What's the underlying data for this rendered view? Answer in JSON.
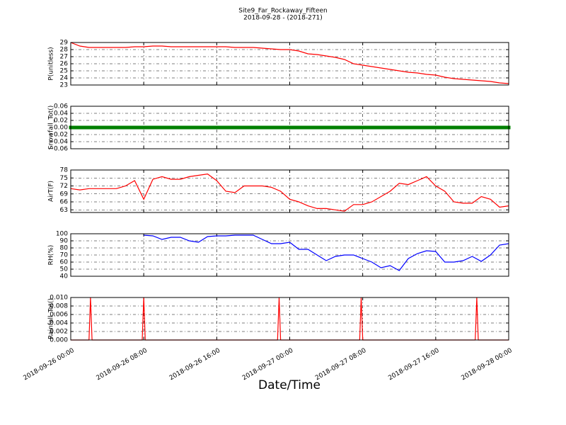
{
  "chart_data": [
    {
      "type": "line",
      "title": "Site9_Far_Rockaway_Fifteen",
      "subtitle": "2018-09-28 - (2018-271)",
      "y_label": "P(unitless)",
      "color": "#ff0000",
      "grid": true,
      "x": [
        "2018-09-26 00:00",
        "2018-09-26 01:00",
        "2018-09-26 02:00",
        "2018-09-26 03:00",
        "2018-09-26 04:00",
        "2018-09-26 05:00",
        "2018-09-26 06:00",
        "2018-09-26 07:00",
        "2018-09-26 08:00",
        "2018-09-26 09:00",
        "2018-09-26 10:00",
        "2018-09-26 11:00",
        "2018-09-26 12:00",
        "2018-09-26 13:00",
        "2018-09-26 14:00",
        "2018-09-26 15:00",
        "2018-09-26 16:00",
        "2018-09-26 17:00",
        "2018-09-26 18:00",
        "2018-09-26 19:00",
        "2018-09-26 20:00",
        "2018-09-26 21:00",
        "2018-09-26 22:00",
        "2018-09-26 23:00",
        "2018-09-27 00:00",
        "2018-09-27 01:00",
        "2018-09-27 02:00",
        "2018-09-27 03:00",
        "2018-09-27 04:00",
        "2018-09-27 05:00",
        "2018-09-27 06:00",
        "2018-09-27 07:00",
        "2018-09-27 08:00",
        "2018-09-27 09:00",
        "2018-09-27 10:00",
        "2018-09-27 11:00",
        "2018-09-27 12:00",
        "2018-09-27 13:00",
        "2018-09-27 14:00",
        "2018-09-27 15:00",
        "2018-09-27 16:00",
        "2018-09-27 17:00",
        "2018-09-27 18:00",
        "2018-09-27 19:00",
        "2018-09-27 20:00",
        "2018-09-27 21:00",
        "2018-09-27 22:00",
        "2018-09-27 23:00",
        "2018-09-28 00:00"
      ],
      "values": [
        29.0,
        28.5,
        28.3,
        28.3,
        28.3,
        28.3,
        28.3,
        28.4,
        28.4,
        28.5,
        28.5,
        28.4,
        28.4,
        28.4,
        28.4,
        28.4,
        28.4,
        28.4,
        28.3,
        28.3,
        28.3,
        28.2,
        28.1,
        28.0,
        28.0,
        27.8,
        27.4,
        27.3,
        27.1,
        26.9,
        26.6,
        26.0,
        25.8,
        25.6,
        25.4,
        25.2,
        25.0,
        24.8,
        24.7,
        24.5,
        24.4,
        24.1,
        23.9,
        23.8,
        23.7,
        23.6,
        23.5,
        23.3,
        23.2
      ],
      "ylim": [
        23,
        29
      ],
      "yticks": [
        23,
        24,
        25,
        26,
        27,
        28,
        29
      ]
    },
    {
      "type": "scatter",
      "y_label": "Snowfall_Tot()",
      "color": "#008000",
      "grid": true,
      "x": [
        "2018-09-26 00:00",
        "2018-09-26 01:00",
        "2018-09-26 02:00",
        "2018-09-26 03:00",
        "2018-09-26 04:00",
        "2018-09-26 05:00",
        "2018-09-26 06:00",
        "2018-09-26 07:00",
        "2018-09-26 08:00",
        "2018-09-26 09:00",
        "2018-09-26 10:00",
        "2018-09-26 11:00",
        "2018-09-26 12:00",
        "2018-09-26 13:00",
        "2018-09-26 14:00",
        "2018-09-26 15:00",
        "2018-09-26 16:00",
        "2018-09-26 17:00",
        "2018-09-26 18:00",
        "2018-09-26 19:00",
        "2018-09-26 20:00",
        "2018-09-26 21:00",
        "2018-09-26 22:00",
        "2018-09-26 23:00",
        "2018-09-27 00:00",
        "2018-09-27 01:00",
        "2018-09-27 02:00",
        "2018-09-27 03:00",
        "2018-09-27 04:00",
        "2018-09-27 05:00",
        "2018-09-27 06:00",
        "2018-09-27 07:00",
        "2018-09-27 08:00",
        "2018-09-27 09:00",
        "2018-09-27 10:00",
        "2018-09-27 11:00",
        "2018-09-27 12:00",
        "2018-09-27 13:00",
        "2018-09-27 14:00",
        "2018-09-27 15:00",
        "2018-09-27 16:00",
        "2018-09-27 17:00",
        "2018-09-27 18:00",
        "2018-09-27 19:00",
        "2018-09-27 20:00",
        "2018-09-27 21:00",
        "2018-09-27 22:00",
        "2018-09-27 23:00",
        "2018-09-28 00:00"
      ],
      "values": [
        0,
        0,
        0,
        0,
        0,
        0,
        0,
        0,
        0,
        0,
        0,
        0,
        0,
        0,
        0,
        0,
        0,
        0,
        0,
        0,
        0,
        0,
        0,
        0,
        0,
        0,
        0,
        0,
        0,
        0,
        0,
        0,
        0,
        0,
        0,
        0,
        0,
        0,
        0,
        0,
        0,
        0,
        0,
        0,
        0,
        0,
        0,
        0,
        0
      ],
      "ylim": [
        -0.06,
        0.06
      ],
      "yticks": [
        {
          "value": -0.06,
          "label": "−0.06"
        },
        {
          "value": -0.04,
          "label": "−0.04"
        },
        {
          "value": -0.02,
          "label": "−0.02"
        },
        {
          "value": 0,
          "label": "0.00"
        },
        0.02,
        0.04,
        0.06
      ]
    },
    {
      "type": "line",
      "y_label": "AirT(F)",
      "color": "#ff0000",
      "grid": true,
      "x": [
        "2018-09-26 00:00",
        "2018-09-26 01:00",
        "2018-09-26 02:00",
        "2018-09-26 03:00",
        "2018-09-26 04:00",
        "2018-09-26 05:00",
        "2018-09-26 06:00",
        "2018-09-26 07:00",
        "2018-09-26 08:00",
        "2018-09-26 09:00",
        "2018-09-26 10:00",
        "2018-09-26 11:00",
        "2018-09-26 12:00",
        "2018-09-26 13:00",
        "2018-09-26 14:00",
        "2018-09-26 15:00",
        "2018-09-26 16:00",
        "2018-09-26 17:00",
        "2018-09-26 18:00",
        "2018-09-26 19:00",
        "2018-09-26 20:00",
        "2018-09-26 21:00",
        "2018-09-26 22:00",
        "2018-09-26 23:00",
        "2018-09-27 00:00",
        "2018-09-27 01:00",
        "2018-09-27 02:00",
        "2018-09-27 03:00",
        "2018-09-27 04:00",
        "2018-09-27 05:00",
        "2018-09-27 06:00",
        "2018-09-27 07:00",
        "2018-09-27 08:00",
        "2018-09-27 09:00",
        "2018-09-27 10:00",
        "2018-09-27 11:00",
        "2018-09-27 12:00",
        "2018-09-27 13:00",
        "2018-09-27 14:00",
        "2018-09-27 15:00",
        "2018-09-27 16:00",
        "2018-09-27 17:00",
        "2018-09-27 18:00",
        "2018-09-27 19:00",
        "2018-09-27 20:00",
        "2018-09-27 21:00",
        "2018-09-27 22:00",
        "2018-09-27 23:00",
        "2018-09-28 00:00"
      ],
      "values": [
        71,
        70.5,
        71,
        71,
        71,
        71,
        72,
        74,
        67,
        74.5,
        75.5,
        74.5,
        74.5,
        75.5,
        76,
        76.5,
        74,
        70,
        69.5,
        72,
        72,
        72,
        71.5,
        70,
        67,
        66,
        64.5,
        63.5,
        63.5,
        63,
        62.5,
        65,
        65,
        66,
        68,
        70,
        73,
        72.5,
        74,
        75.5,
        72,
        70,
        66,
        65.5,
        65.5,
        68,
        67,
        64,
        64.5
      ],
      "ylim": [
        62,
        78
      ],
      "yticks": [
        63,
        66,
        69,
        72,
        75,
        78
      ]
    },
    {
      "type": "line",
      "y_label": "RH(%)",
      "color": "#0000ff",
      "grid": true,
      "x": [
        "2018-09-26 00:00",
        "2018-09-26 01:00",
        "2018-09-26 02:00",
        "2018-09-26 03:00",
        "2018-09-26 04:00",
        "2018-09-26 05:00",
        "2018-09-26 06:00",
        "2018-09-26 07:00",
        "2018-09-26 08:00",
        "2018-09-26 09:00",
        "2018-09-26 10:00",
        "2018-09-26 11:00",
        "2018-09-26 12:00",
        "2018-09-26 13:00",
        "2018-09-26 14:00",
        "2018-09-26 15:00",
        "2018-09-26 16:00",
        "2018-09-26 17:00",
        "2018-09-26 18:00",
        "2018-09-26 19:00",
        "2018-09-26 20:00",
        "2018-09-26 21:00",
        "2018-09-26 22:00",
        "2018-09-26 23:00",
        "2018-09-27 00:00",
        "2018-09-27 01:00",
        "2018-09-27 02:00",
        "2018-09-27 03:00",
        "2018-09-27 04:00",
        "2018-09-27 05:00",
        "2018-09-27 06:00",
        "2018-09-27 07:00",
        "2018-09-27 08:00",
        "2018-09-27 09:00",
        "2018-09-27 10:00",
        "2018-09-27 11:00",
        "2018-09-27 12:00",
        "2018-09-27 13:00",
        "2018-09-27 14:00",
        "2018-09-27 15:00",
        "2018-09-27 16:00",
        "2018-09-27 17:00",
        "2018-09-27 18:00",
        "2018-09-27 19:00",
        "2018-09-27 20:00",
        "2018-09-27 21:00",
        "2018-09-27 22:00",
        "2018-09-27 23:00",
        "2018-09-28 00:00"
      ],
      "values": [
        null,
        null,
        null,
        null,
        null,
        null,
        null,
        null,
        98,
        97,
        92,
        95,
        95,
        90,
        88,
        96,
        97,
        97,
        98,
        98,
        98,
        92,
        86,
        86,
        88,
        78,
        78,
        70,
        62,
        68,
        70,
        70,
        65,
        60,
        52,
        55,
        48,
        65,
        72,
        76,
        75,
        60,
        60,
        62,
        68,
        61,
        70,
        84,
        86
      ],
      "ylim": [
        40,
        100
      ],
      "yticks": [
        40,
        50,
        60,
        70,
        80,
        90,
        100
      ]
    },
    {
      "type": "line",
      "y_label": "Rainfall_Tot()",
      "x_label": "Date/Time",
      "color": "#ff0000",
      "grid": true,
      "x": [
        "2018-09-26 00:00",
        "2018-09-26 02:00",
        "2018-09-26 02:10",
        "2018-09-26 02:20",
        "2018-09-26 07:50",
        "2018-09-26 08:00",
        "2018-09-26 08:10",
        "2018-09-26 22:40",
        "2018-09-26 22:50",
        "2018-09-26 23:00",
        "2018-09-27 07:40",
        "2018-09-27 07:50",
        "2018-09-27 08:00",
        "2018-09-27 20:20",
        "2018-09-27 20:30",
        "2018-09-27 20:40",
        "2018-09-28 00:00"
      ],
      "values": [
        0,
        0,
        0.01,
        0,
        0,
        0.01,
        0,
        0,
        0.01,
        0,
        0,
        0.01,
        0,
        0,
        0.01,
        0,
        0
      ],
      "ylim": [
        0,
        0.01
      ],
      "yticks": [
        {
          "value": 0,
          "label": "0.000"
        },
        0.002,
        0.004,
        0.006,
        0.008,
        {
          "value": 0.01,
          "label": "0.010"
        }
      ],
      "xlim": [
        "2018-09-26 00:00",
        "2018-09-28 00:00"
      ],
      "xticks": [
        "2018-09-26 00:00",
        "2018-09-26 08:00",
        "2018-09-26 16:00",
        "2018-09-27 00:00",
        "2018-09-27 08:00",
        "2018-09-27 16:00",
        "2018-09-28 00:00"
      ]
    }
  ]
}
